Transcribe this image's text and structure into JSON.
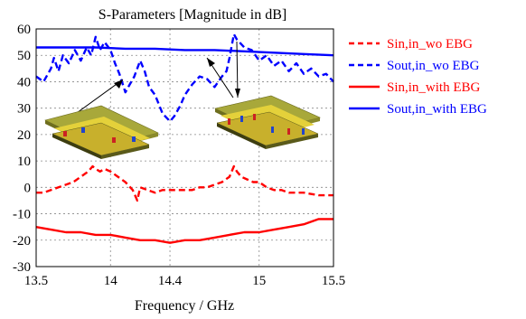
{
  "chart_data": {
    "type": "line",
    "title": "S-Parameters [Magnitude in dB]",
    "xlabel": "Frequency / GHz",
    "ylabel": "",
    "xlim": [
      13.5,
      15.5
    ],
    "ylim": [
      -30,
      60
    ],
    "xticks": [
      13.5,
      14,
      14.4,
      15,
      15.5
    ],
    "xtick_labels": [
      "13.5",
      "14",
      "14.4",
      "15",
      "15.5"
    ],
    "yticks": [
      -30,
      -20,
      -10,
      0,
      10,
      20,
      30,
      40,
      50,
      60
    ],
    "grid": true,
    "legend_position": "right",
    "series": [
      {
        "name": "Sin,in_wo EBG",
        "color": "#ff0000",
        "dash": "dashed",
        "x": [
          13.5,
          13.55,
          13.6,
          13.65,
          13.7,
          13.75,
          13.8,
          13.85,
          13.88,
          13.9,
          13.93,
          13.96,
          14.0,
          14.05,
          14.1,
          14.15,
          14.18,
          14.2,
          14.25,
          14.3,
          14.35,
          14.4,
          14.45,
          14.5,
          14.55,
          14.6,
          14.65,
          14.7,
          14.75,
          14.8,
          14.83,
          14.85,
          14.88,
          14.92,
          14.96,
          15.0,
          15.05,
          15.1,
          15.15,
          15.2,
          15.3,
          15.4,
          15.5
        ],
        "y": [
          -2,
          -2,
          -1,
          0,
          1,
          2,
          4,
          6,
          8,
          7,
          6,
          7,
          6,
          4,
          2,
          -1,
          -5,
          0,
          -1,
          -2,
          -1,
          -1,
          -1,
          -1,
          -1,
          0,
          0,
          1,
          2,
          4,
          8,
          6,
          4,
          3,
          2,
          2,
          0,
          -1,
          -1,
          -2,
          -2,
          -3,
          -3
        ]
      },
      {
        "name": "Sout,in_wo EBG",
        "color": "#0000ff",
        "dash": "dashed",
        "x": [
          13.5,
          13.55,
          13.6,
          13.62,
          13.65,
          13.68,
          13.72,
          13.76,
          13.8,
          13.84,
          13.87,
          13.9,
          13.93,
          13.96,
          14.0,
          14.03,
          14.06,
          14.1,
          14.13,
          14.16,
          14.2,
          14.23,
          14.26,
          14.3,
          14.35,
          14.4,
          14.43,
          14.47,
          14.5,
          14.55,
          14.6,
          14.65,
          14.7,
          14.75,
          14.78,
          14.8,
          14.83,
          14.85,
          14.9,
          14.95,
          15.0,
          15.05,
          15.1,
          15.15,
          15.2,
          15.25,
          15.3,
          15.35,
          15.4,
          15.45,
          15.5
        ],
        "y": [
          42,
          40,
          45,
          49,
          44,
          50,
          47,
          52,
          48,
          53,
          50,
          57,
          52,
          55,
          52,
          47,
          43,
          36,
          39,
          42,
          48,
          44,
          38,
          35,
          28,
          25,
          27,
          31,
          35,
          39,
          42,
          41,
          38,
          42,
          44,
          49,
          58,
          56,
          53,
          52,
          48,
          50,
          46,
          48,
          44,
          47,
          43,
          45,
          42,
          43,
          40
        ]
      },
      {
        "name": "Sin,in_with EBG",
        "color": "#ff0000",
        "dash": "solid",
        "x": [
          13.5,
          13.6,
          13.7,
          13.8,
          13.9,
          14.0,
          14.1,
          14.2,
          14.3,
          14.4,
          14.5,
          14.6,
          14.7,
          14.8,
          14.9,
          15.0,
          15.1,
          15.2,
          15.3,
          15.4,
          15.5
        ],
        "y": [
          -15,
          -16,
          -17,
          -17,
          -18,
          -18,
          -19,
          -20,
          -20,
          -21,
          -20,
          -20,
          -19,
          -18,
          -17,
          -17,
          -16,
          -15,
          -14,
          -12,
          -12
        ]
      },
      {
        "name": "Sout,in_with EBG",
        "color": "#0000ff",
        "dash": "solid",
        "x": [
          13.5,
          13.7,
          13.9,
          14.1,
          14.3,
          14.5,
          14.7,
          14.9,
          15.1,
          15.3,
          15.5
        ],
        "y": [
          53,
          53,
          53,
          52.5,
          52.5,
          52,
          52,
          51.5,
          51,
          50.5,
          50
        ]
      }
    ]
  }
}
